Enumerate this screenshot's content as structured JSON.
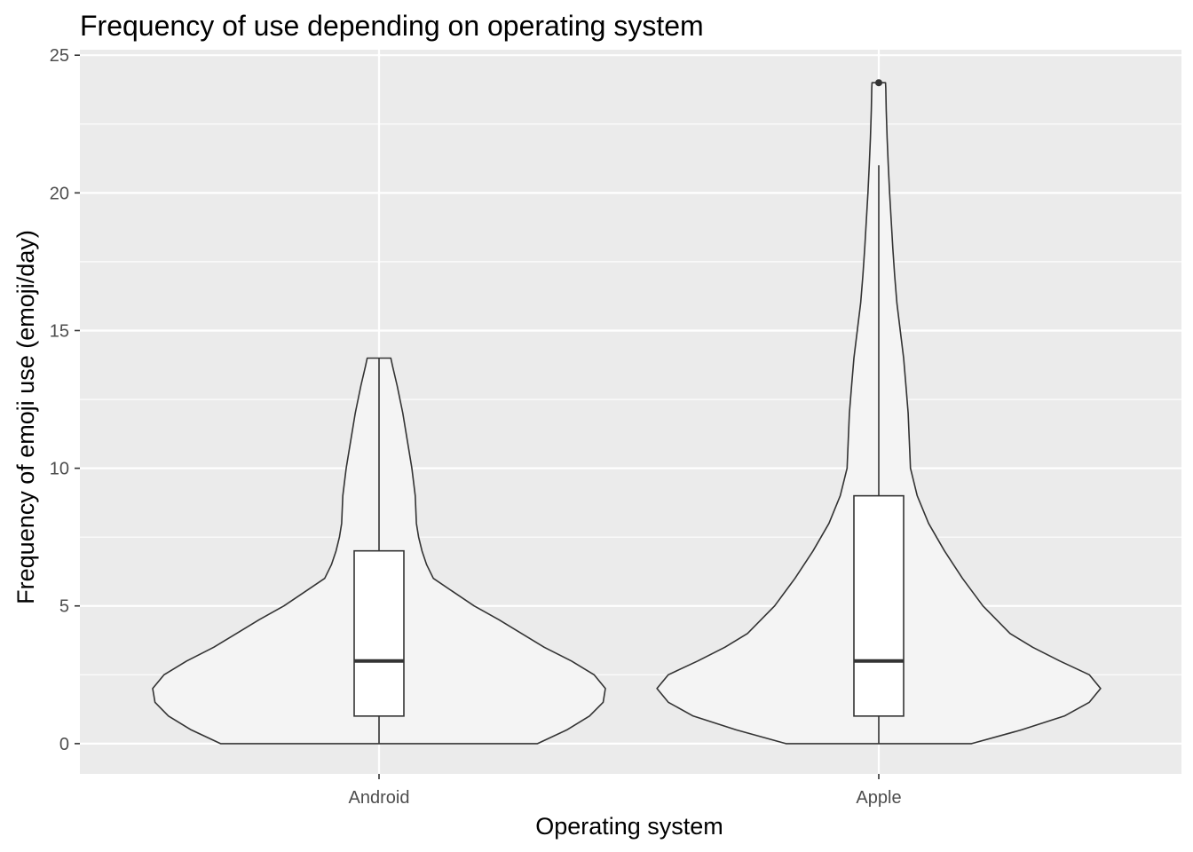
{
  "chart_data": {
    "type": "violin",
    "title": "Frequency of use depending on operating system",
    "xlabel": "Operating system",
    "ylabel": "Frequency of emoji use (emoji/day)",
    "categories": [
      "Android",
      "Apple"
    ],
    "ylim": [
      -1.1,
      25.2
    ],
    "yticks": [
      0,
      5,
      10,
      15,
      20,
      25
    ],
    "grid": true,
    "legend": "none",
    "colors": {
      "panel": "#ebebeb",
      "grid_major": "#ffffff",
      "violin_fill": "#f4f4f4",
      "outline": "#333333",
      "box_fill": "#ffffff",
      "tick_text": "#4d4d4d"
    },
    "violins": [
      {
        "category": "Android",
        "min": 0,
        "max": 14,
        "density_profile": [
          [
            0,
            0.7
          ],
          [
            0.5,
            0.83
          ],
          [
            1,
            0.93
          ],
          [
            1.5,
            0.99
          ],
          [
            2,
            1.0
          ],
          [
            2.5,
            0.95
          ],
          [
            3,
            0.85
          ],
          [
            3.5,
            0.73
          ],
          [
            4,
            0.63
          ],
          [
            4.5,
            0.53
          ],
          [
            5,
            0.42
          ],
          [
            5.5,
            0.33
          ],
          [
            6,
            0.24
          ],
          [
            6.5,
            0.21
          ],
          [
            7,
            0.19
          ],
          [
            7.5,
            0.175
          ],
          [
            8,
            0.165
          ],
          [
            9,
            0.16
          ],
          [
            10,
            0.145
          ],
          [
            11,
            0.125
          ],
          [
            12,
            0.105
          ],
          [
            13,
            0.08
          ],
          [
            13.7,
            0.06
          ],
          [
            14,
            0.052
          ]
        ]
      },
      {
        "category": "Apple",
        "min": 0,
        "max": 24,
        "density_profile": [
          [
            0,
            0.41
          ],
          [
            0.5,
            0.63
          ],
          [
            1,
            0.82
          ],
          [
            1.5,
            0.93
          ],
          [
            2,
            0.98
          ],
          [
            2.5,
            0.93
          ],
          [
            3,
            0.8
          ],
          [
            3.5,
            0.68
          ],
          [
            4,
            0.58
          ],
          [
            5,
            0.46
          ],
          [
            6,
            0.37
          ],
          [
            7,
            0.29
          ],
          [
            8,
            0.22
          ],
          [
            9,
            0.17
          ],
          [
            10,
            0.14
          ],
          [
            11,
            0.135
          ],
          [
            12,
            0.13
          ],
          [
            13,
            0.12
          ],
          [
            14,
            0.11
          ],
          [
            15,
            0.095
          ],
          [
            16,
            0.08
          ],
          [
            17,
            0.07
          ],
          [
            18,
            0.062
          ],
          [
            19,
            0.055
          ],
          [
            20,
            0.048
          ],
          [
            21,
            0.042
          ],
          [
            22,
            0.037
          ],
          [
            23,
            0.033
          ],
          [
            23.8,
            0.031
          ],
          [
            24,
            0.03
          ]
        ]
      }
    ],
    "boxes": [
      {
        "category": "Android",
        "whisker_low": 0,
        "q1": 1,
        "median": 3,
        "q3": 7,
        "whisker_high": 14,
        "outliers": []
      },
      {
        "category": "Apple",
        "whisker_low": 0,
        "q1": 1,
        "median": 3,
        "q3": 9,
        "whisker_high": 21,
        "outliers": [
          24
        ]
      }
    ]
  }
}
